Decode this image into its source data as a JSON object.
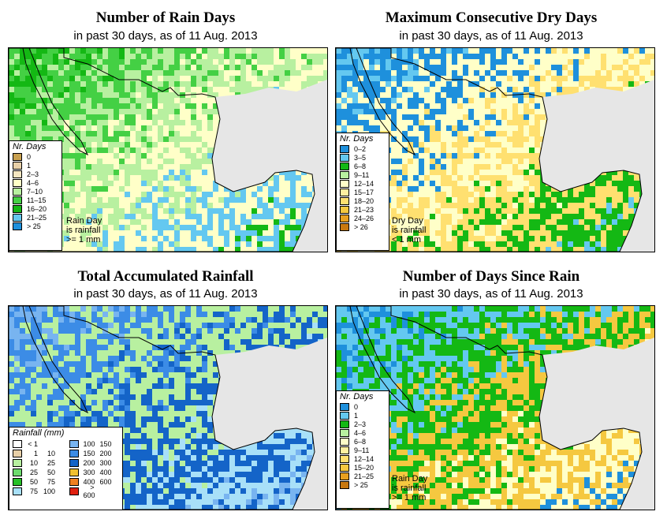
{
  "panels": [
    {
      "id": "rain-days",
      "title": "Number of Rain Days",
      "subtitle": "in past 30 days, as of  11 Aug. 2013",
      "legend_title": "Nr. Days",
      "legend": [
        {
          "label": "0",
          "color": "#c8a050"
        },
        {
          "label": "1",
          "color": "#e8d0a8"
        },
        {
          "label": "2–3",
          "color": "#f5e6c0"
        },
        {
          "label": "4–6",
          "color": "#ffffc8"
        },
        {
          "label": "7–10",
          "color": "#b8f0a0"
        },
        {
          "label": "11–15",
          "color": "#44d044"
        },
        {
          "label": "16–20",
          "color": "#14b814"
        },
        {
          "label": "21–25",
          "color": "#64c8f0"
        },
        {
          "label": "> 25",
          "color": "#1e90dc"
        }
      ],
      "note": [
        "Rain Day",
        "is rainfall",
        ">= 1 mm"
      ]
    },
    {
      "id": "dry-days",
      "title": "Maximum Consecutive Dry Days",
      "subtitle": "in past 30 days, as of  11 Aug. 2013",
      "legend_title": "Nr. Days",
      "legend": [
        {
          "label": "0–2",
          "color": "#1e90dc"
        },
        {
          "label": "3–5",
          "color": "#64c8f0"
        },
        {
          "label": "6–8",
          "color": "#14b814"
        },
        {
          "label": "9–11",
          "color": "#b8f0a0"
        },
        {
          "label": "12–14",
          "color": "#ffffc8"
        },
        {
          "label": "15–17",
          "color": "#fff0a0"
        },
        {
          "label": "18–20",
          "color": "#ffe070"
        },
        {
          "label": "21–23",
          "color": "#f5c840"
        },
        {
          "label": "24–26",
          "color": "#e8a020"
        },
        {
          "label": "> 26",
          "color": "#c87810"
        }
      ],
      "note": [
        "Dry Day",
        "is rainfall",
        "< 1 mm"
      ]
    },
    {
      "id": "total-rain",
      "title": "Total Accumulated Rainfall",
      "subtitle": "in past 30 days, as of  11 Aug. 2013",
      "legend_title": "Rainfall (mm)",
      "legend_left": [
        {
          "lo": "< 1",
          "hi": "",
          "color": "#ffffff"
        },
        {
          "lo": "1",
          "hi": "10",
          "color": "#e8d0a8"
        },
        {
          "lo": "10",
          "hi": "25",
          "color": "#b8f0a0"
        },
        {
          "lo": "25",
          "hi": "50",
          "color": "#6edc6e"
        },
        {
          "lo": "50",
          "hi": "75",
          "color": "#28c028"
        },
        {
          "lo": "75",
          "hi": "100",
          "color": "#a8e0f8"
        }
      ],
      "legend_right": [
        {
          "lo": "100",
          "hi": "150",
          "color": "#78b4f0"
        },
        {
          "lo": "150",
          "hi": "200",
          "color": "#3c8ce6"
        },
        {
          "lo": "200",
          "hi": "300",
          "color": "#1464c8"
        },
        {
          "lo": "300",
          "hi": "400",
          "color": "#f0c030"
        },
        {
          "lo": "400",
          "hi": "600",
          "color": "#f08020"
        },
        {
          "lo": "> 600",
          "hi": "",
          "color": "#e02010"
        }
      ]
    },
    {
      "id": "since-rain",
      "title": "Number of Days Since Rain",
      "subtitle": "in past 30 days, as of  11 Aug. 2013",
      "legend_title": "Nr. Days",
      "legend": [
        {
          "label": "0",
          "color": "#1e90dc"
        },
        {
          "label": "1",
          "color": "#64c8f0"
        },
        {
          "label": "2–3",
          "color": "#14b814"
        },
        {
          "label": "4–6",
          "color": "#b8f0a0"
        },
        {
          "label": "6–8",
          "color": "#ffffc8"
        },
        {
          "label": "9–11",
          "color": "#fff0a0"
        },
        {
          "label": "12–14",
          "color": "#ffe070"
        },
        {
          "label": "15–20",
          "color": "#f5c840"
        },
        {
          "label": "21–25",
          "color": "#e8a020"
        },
        {
          "label": "> 25",
          "color": "#c87810"
        }
      ],
      "note": [
        "Rain Day",
        "is rainfall",
        ">= 1 mm"
      ]
    }
  ],
  "colors": {
    "water": "#e6e6e6",
    "border": "#000000"
  }
}
